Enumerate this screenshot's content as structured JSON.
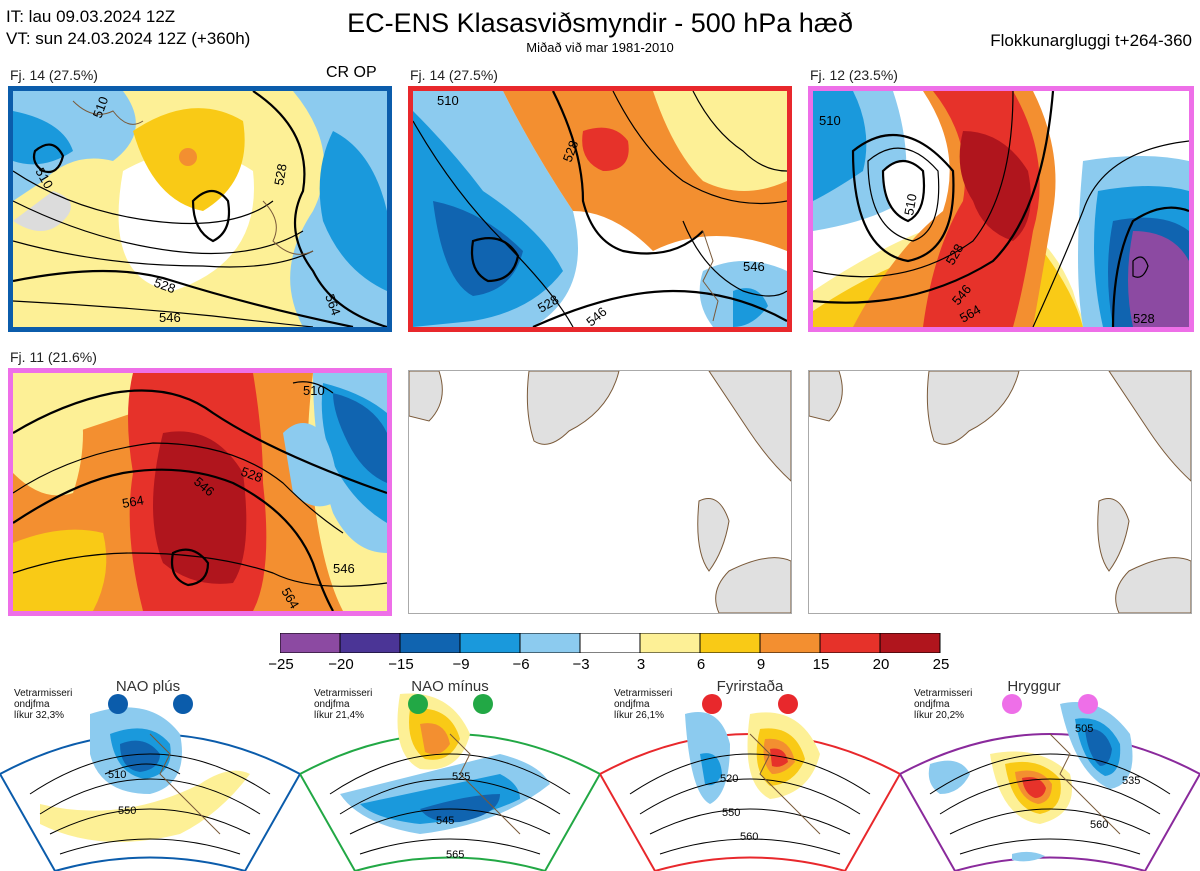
{
  "header": {
    "init_time": "IT: lau 09.03.2024 12Z",
    "valid_time": "VT: sun 24.03.2024 12Z  (+360h)",
    "title": "EC-ENS Klasasviðsmyndir - 500 hPa hæð",
    "subtitle": "Miðað við mar 1981-2010",
    "window": "Flokkunargluggi t+264-360"
  },
  "colors": {
    "blue_frame": "#0b5cab",
    "red_frame": "#e8282c",
    "magenta_frame": "#ee6fe8"
  },
  "panels": [
    {
      "label": "Fj. 14 (27.5%)",
      "extra": "CR OP",
      "frame": "blue",
      "contours": [
        "510",
        "510",
        "528",
        "528",
        "546",
        "564"
      ]
    },
    {
      "label": "Fj. 14 (27.5%)",
      "extra": "",
      "frame": "red",
      "contours": [
        "510",
        "528",
        "546",
        "528",
        "546"
      ]
    },
    {
      "label": "Fj. 12 (23.5%)",
      "extra": "",
      "frame": "magenta",
      "contours": [
        "510",
        "510",
        "528",
        "546",
        "564",
        "528"
      ]
    },
    {
      "label": "Fj. 11 (21.6%)",
      "extra": "",
      "frame": "magenta",
      "contours": [
        "510",
        "528",
        "546",
        "564",
        "546",
        "564"
      ]
    }
  ],
  "colorbar": {
    "ticks": [
      "−25",
      "−20",
      "−15",
      "−9",
      "−6",
      "−3",
      "3",
      "6",
      "9",
      "15",
      "20",
      "25"
    ],
    "colors": [
      "#8c4aa2",
      "#4b3596",
      "#1064b0",
      "#1a99dc",
      "#8ccbef",
      "#ffffff",
      "#fdf096",
      "#f9ca16",
      "#f38f30",
      "#e6322a",
      "#b0151d"
    ]
  },
  "regimes": [
    {
      "name": "NAO plús",
      "note": [
        "Vetrarmisseri",
        "ondjfma",
        "líkur 32,3%"
      ],
      "color": "#0b5cab",
      "dot_color": "#0b5cab",
      "contours": [
        "510",
        "550"
      ]
    },
    {
      "name": "NAO mínus",
      "note": [
        "Vetrarmisseri",
        "ondjfma",
        "líkur 21,4%"
      ],
      "color": "#22a845",
      "dot_color": "#22a845",
      "contours": [
        "525",
        "545",
        "565"
      ]
    },
    {
      "name": "Fyrirstaða",
      "note": [
        "Vetrarmisseri",
        "ondjfma",
        "líkur 26,1%"
      ],
      "color": "#e8282c",
      "dot_color": "#e8282c",
      "contours": [
        "520",
        "550",
        "560"
      ]
    },
    {
      "name": "Hryggur",
      "note": [
        "Vetrarmisseri",
        "ondjfma",
        "líkur 20,2%"
      ],
      "color": "#8a2a9c",
      "dot_color": "#ee6fe8",
      "contours": [
        "505",
        "535",
        "560"
      ]
    }
  ]
}
